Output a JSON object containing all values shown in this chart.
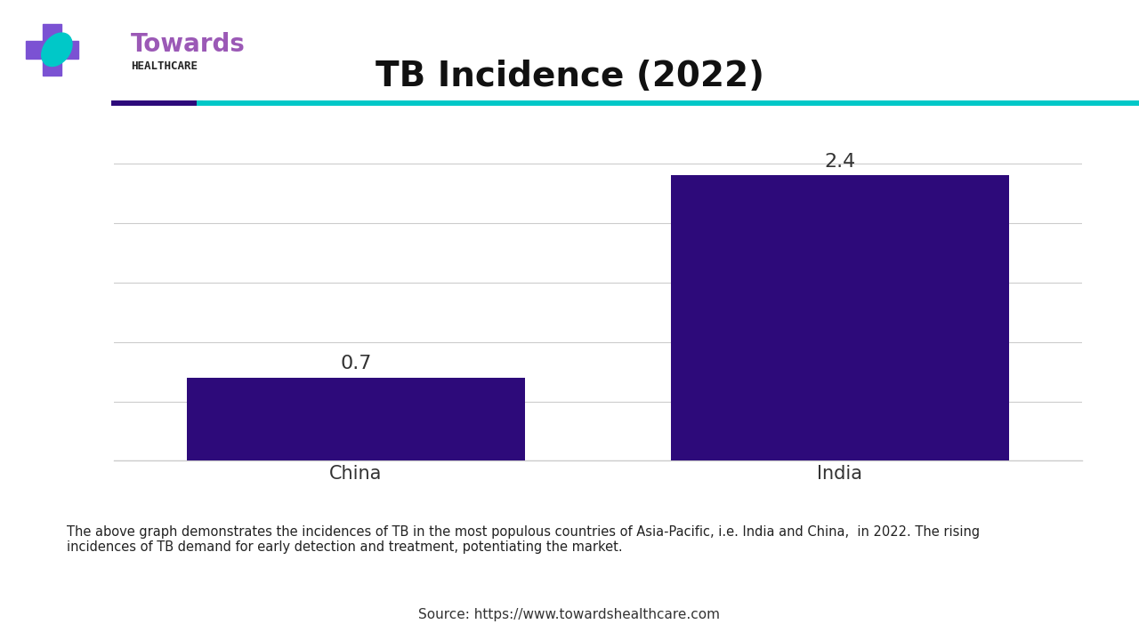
{
  "title": "TB Incidence (2022)",
  "categories": [
    "China",
    "India"
  ],
  "values": [
    0.7,
    2.4
  ],
  "bar_color": "#2D0A7A",
  "bar_width": 0.35,
  "ylim": [
    0,
    2.8
  ],
  "background_color": "#ffffff",
  "annotation_fontsize": 16,
  "axis_label_fontsize": 15,
  "title_fontsize": 28,
  "description_text": "The above graph demonstrates the incidences of TB in the most populous countries of Asia-Pacific, i.e. India and China,  in 2022. The rising\nincidences of TB demand for early detection and treatment, potentiating the market.",
  "source_text": "Source: https://www.towardshealthcare.com",
  "desc_box_color": "#f0f0f0",
  "separator_color1": "#2D0A7A",
  "separator_color2": "#00C8C8",
  "grid_color": "#cccccc",
  "logo_towards_color": "#9B59B6",
  "logo_cross_color": "#7B52D3",
  "logo_leaf_color": "#00C8C8"
}
